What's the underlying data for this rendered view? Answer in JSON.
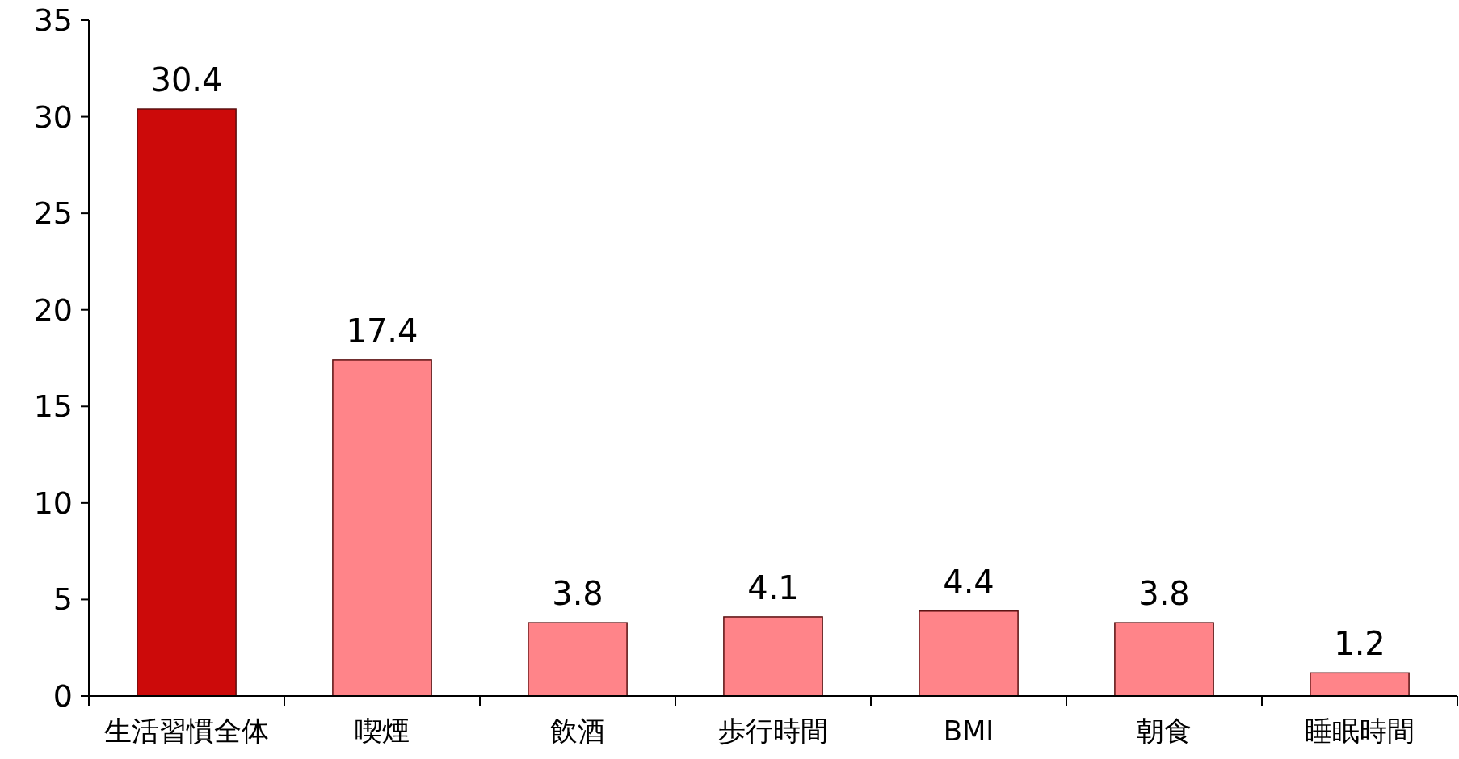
{
  "chart_data": {
    "type": "bar",
    "categories": [
      "生活習慣全体",
      "喫煙",
      "飲酒",
      "歩行時間",
      "BMI",
      "朝食",
      "睡眠時間"
    ],
    "values": [
      30.4,
      17.4,
      3.8,
      4.1,
      4.4,
      3.8,
      1.2
    ],
    "colors": [
      "#cc0a0a",
      "#ff8489",
      "#ff8489",
      "#ff8489",
      "#ff8489",
      "#ff8489",
      "#ff8489"
    ],
    "ylim": [
      0,
      35
    ],
    "yticks": [
      0,
      5,
      10,
      15,
      20,
      25,
      30,
      35
    ],
    "data_labels": true
  }
}
